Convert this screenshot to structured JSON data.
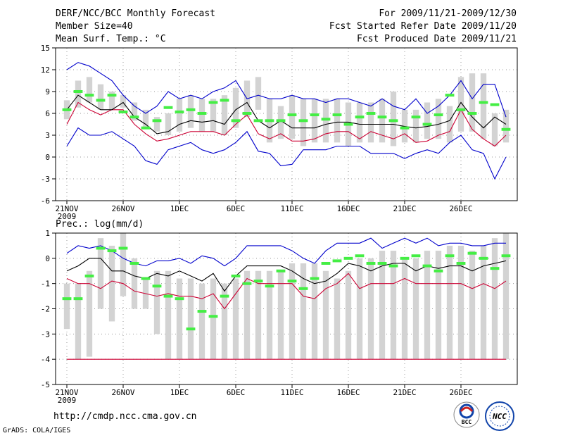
{
  "header": {
    "title": "DERF/NCC/BCC Monthly Forecast",
    "member_size": "Member Size=40",
    "period": "For 2009/11/21-2009/12/30",
    "fcst_started": "Fcst Started Refer Date 2009/11/20",
    "fcst_produced": "Fcst Produced Date 2009/11/21"
  },
  "footer": {
    "url": "http://cmdp.ncc.cma.gov.cn",
    "credit": "GrADS: COLA/IGES",
    "logo_left": "BCC",
    "logo_right": "NCC"
  },
  "colors": {
    "box": "#d3d3d3",
    "ensemble_mean": "#000000",
    "lower_line": "#cc0033",
    "upper_line": "#0000cc",
    "observed": "#44ee44",
    "grid": "#999999"
  },
  "chart_data": [
    {
      "type": "box",
      "title": "Mean Surf. Temp.: °C",
      "ylim": [
        -6,
        15
      ],
      "yticks": [
        "15",
        "12",
        "9",
        "6",
        "3",
        "0",
        "-3",
        "-6"
      ],
      "xticks": [
        "21NOV",
        "26NOV",
        "1DEC",
        "6DEC",
        "11DEC",
        "16DEC",
        "21DEC",
        "26DEC"
      ],
      "xtick_year": "2009",
      "days": 40,
      "box_low": [
        5.2,
        6.8,
        7.5,
        6.5,
        6.5,
        6.8,
        5.0,
        4.0,
        3.5,
        3.0,
        3.5,
        4.0,
        3.5,
        3.5,
        3.0,
        4.0,
        5.5,
        6.5,
        2.0,
        2.5,
        2.5,
        1.5,
        2.0,
        2.0,
        2.0,
        1.5,
        2.0,
        2.0,
        2.0,
        1.5,
        2.0,
        2.0,
        2.5,
        2.5,
        2.0,
        3.5,
        3.5,
        2.5,
        1.5,
        2.0
      ],
      "box_high": [
        7.8,
        10.5,
        11.0,
        10.0,
        9.0,
        8.5,
        7.5,
        6.5,
        5.5,
        6.0,
        8.0,
        8.5,
        8.0,
        8.0,
        8.5,
        9.5,
        10.5,
        11.0,
        8.0,
        7.0,
        8.5,
        8.0,
        8.0,
        8.0,
        8.0,
        7.5,
        7.5,
        7.5,
        8.0,
        9.0,
        6.5,
        6.5,
        7.5,
        8.0,
        7.0,
        11.0,
        11.5,
        11.5,
        6.0,
        6.5
      ],
      "mean": [
        6.5,
        8.5,
        7.5,
        6.5,
        6.5,
        7.5,
        5.5,
        4.5,
        3.2,
        3.5,
        4.5,
        5.0,
        4.8,
        5.0,
        4.5,
        6.5,
        7.5,
        5.0,
        4.0,
        5.0,
        4.0,
        4.0,
        4.0,
        4.5,
        4.8,
        4.8,
        4.5,
        4.5,
        4.5,
        4.5,
        4.2,
        4.0,
        4.2,
        4.5,
        5.0,
        7.5,
        5.5,
        4.0,
        5.5,
        4.5
      ],
      "lower": [
        4.5,
        7.5,
        6.5,
        5.8,
        6.5,
        6.5,
        4.5,
        3.2,
        2.2,
        2.5,
        3.0,
        3.5,
        3.5,
        3.5,
        3.0,
        4.5,
        5.8,
        3.2,
        2.5,
        3.2,
        2.2,
        2.2,
        2.5,
        3.2,
        3.5,
        3.5,
        2.5,
        3.5,
        3.0,
        2.5,
        3.2,
        2.0,
        2.2,
        3.0,
        3.5,
        6.5,
        3.8,
        2.5,
        1.5,
        3.0
      ],
      "upper": [
        12.0,
        13.0,
        12.5,
        11.5,
        10.5,
        8.5,
        7.0,
        6.0,
        7.0,
        9.0,
        8.0,
        8.5,
        8.0,
        9.0,
        9.5,
        10.5,
        8.0,
        8.5,
        8.0,
        8.0,
        8.5,
        8.0,
        8.0,
        7.5,
        8.0,
        8.0,
        7.5,
        7.0,
        8.0,
        7.0,
        6.5,
        8.0,
        6.0,
        7.0,
        8.5,
        10.5,
        8.0,
        10.0,
        10.0,
        5.5
      ],
      "minimum": [
        1.5,
        4.0,
        3.0,
        3.0,
        3.5,
        2.5,
        1.5,
        -0.5,
        -1.0,
        1.0,
        1.5,
        2.0,
        1.0,
        0.5,
        1.0,
        2.0,
        3.5,
        0.8,
        0.5,
        -1.2,
        -1.0,
        1.0,
        1.0,
        1.0,
        1.5,
        1.5,
        1.5,
        0.5,
        0.5,
        0.5,
        -0.2,
        0.5,
        1.0,
        0.5,
        2.0,
        3.0,
        1.0,
        0.5,
        -3.0,
        0.0
      ],
      "observed": [
        6.5,
        9.0,
        8.5,
        7.8,
        8.5,
        6.2,
        5.5,
        4.0,
        5.0,
        6.8,
        6.2,
        6.5,
        6.0,
        7.5,
        7.8,
        5.0,
        6.0,
        5.0,
        5.0,
        5.0,
        5.8,
        5.0,
        5.8,
        5.2,
        5.8,
        4.5,
        5.5,
        6.0,
        5.5,
        5.0,
        4.0,
        5.5,
        4.5,
        5.8,
        8.5,
        6.5,
        6.0,
        7.5,
        7.2,
        3.8
      ]
    },
    {
      "type": "box",
      "title": "Prec.: log(mm/d)",
      "ylim": [
        -5,
        1
      ],
      "yticks": [
        "1",
        "0",
        "-1",
        "-2",
        "-3",
        "-4",
        "-5"
      ],
      "xticks": [
        "21NOV",
        "26NOV",
        "1DEC",
        "6DEC",
        "11DEC",
        "16DEC",
        "21DEC",
        "26DEC"
      ],
      "xtick_year": "2009",
      "days": 40,
      "box_low": [
        -2.8,
        -4.0,
        -3.9,
        -2.0,
        -2.5,
        -1.5,
        -2.0,
        -2.0,
        -3.0,
        -4.0,
        -4.0,
        -4.0,
        -4.0,
        -4.0,
        -4.0,
        -4.0,
        -4.0,
        -4.0,
        -4.0,
        -4.0,
        -4.0,
        -4.0,
        -4.0,
        -4.0,
        -4.0,
        -4.0,
        -4.0,
        -4.0,
        -4.0,
        -4.0,
        -4.0,
        -4.0,
        -4.0,
        -4.0,
        -4.0,
        -4.0,
        -4.0,
        -4.0,
        -4.0,
        -4.0
      ],
      "box_high": [
        -1.0,
        -1.0,
        -0.5,
        0.8,
        0.5,
        1.0,
        0.0,
        -0.8,
        -0.5,
        -0.5,
        -0.8,
        -0.8,
        -1.0,
        -0.8,
        -1.0,
        -0.8,
        -0.5,
        -0.5,
        -0.5,
        -0.5,
        -0.2,
        -0.2,
        -0.2,
        -0.5,
        -0.8,
        -0.5,
        0.0,
        0.0,
        0.3,
        0.3,
        0.0,
        0.0,
        0.3,
        0.3,
        0.5,
        0.5,
        0.3,
        0.5,
        0.8,
        1.0
      ],
      "mean": [
        -0.5,
        -0.3,
        0.0,
        0.0,
        -0.5,
        -0.5,
        -0.7,
        -0.8,
        -0.6,
        -0.7,
        -0.5,
        -0.7,
        -0.9,
        -0.6,
        -1.3,
        -0.7,
        -0.3,
        -0.3,
        -0.3,
        -0.3,
        -0.5,
        -0.8,
        -1.0,
        -0.9,
        -0.6,
        -0.2,
        -0.3,
        -0.5,
        -0.3,
        -0.2,
        -0.2,
        -0.5,
        -0.3,
        -0.4,
        -0.3,
        -0.3,
        -0.5,
        -0.3,
        -0.2,
        -0.1
      ],
      "lower": [
        -0.8,
        -1.0,
        -1.0,
        -1.2,
        -0.9,
        -1.0,
        -1.3,
        -1.4,
        -1.5,
        -1.4,
        -1.5,
        -1.5,
        -1.6,
        -1.4,
        -2.0,
        -1.4,
        -0.8,
        -1.0,
        -1.0,
        -1.0,
        -1.0,
        -1.5,
        -1.6,
        -1.2,
        -1.0,
        -0.6,
        -1.2,
        -1.0,
        -1.0,
        -1.0,
        -0.8,
        -1.0,
        -1.0,
        -1.0,
        -1.0,
        -1.0,
        -1.2,
        -1.0,
        -1.2,
        -0.9
      ],
      "upper": [
        0.2,
        0.5,
        0.4,
        0.5,
        0.3,
        0.0,
        -0.2,
        -0.3,
        -0.1,
        -0.1,
        0.0,
        -0.2,
        0.1,
        0.0,
        -0.3,
        0.0,
        0.5,
        0.5,
        0.5,
        0.5,
        0.3,
        0.0,
        -0.2,
        0.3,
        0.6,
        0.6,
        0.6,
        0.8,
        0.4,
        0.6,
        0.8,
        0.6,
        0.8,
        0.5,
        0.6,
        0.6,
        0.5,
        0.5,
        0.6,
        0.6
      ],
      "minimum": [
        -4.0,
        -4.0,
        -4.0,
        -4.0,
        -4.0,
        -4.0,
        -4.0,
        -4.0,
        -4.0,
        -4.0,
        -4.0,
        -4.0,
        -4.0,
        -4.0,
        -4.0,
        -4.0,
        -4.0,
        -4.0,
        -4.0,
        -4.0,
        -4.0,
        -4.0,
        -4.0,
        -4.0,
        -4.0,
        -4.0,
        -4.0,
        -4.0,
        -4.0,
        -4.0,
        -4.0,
        -4.0,
        -4.0,
        -4.0,
        -4.0,
        -4.0,
        -4.0,
        -4.0,
        -4.0,
        -4.0
      ],
      "observed": [
        -1.6,
        -1.6,
        -0.7,
        0.4,
        0.3,
        0.4,
        -0.2,
        -0.8,
        -1.1,
        -1.5,
        -1.6,
        -2.8,
        -2.1,
        -2.3,
        -1.5,
        -0.7,
        -1.0,
        -0.9,
        -1.1,
        -0.5,
        -0.9,
        -1.2,
        -0.8,
        -0.2,
        -0.1,
        0.0,
        0.1,
        -0.2,
        -0.2,
        -0.3,
        0.0,
        0.1,
        -0.3,
        -0.5,
        0.1,
        -0.2,
        0.2,
        0.0,
        -0.4,
        0.1
      ]
    }
  ]
}
